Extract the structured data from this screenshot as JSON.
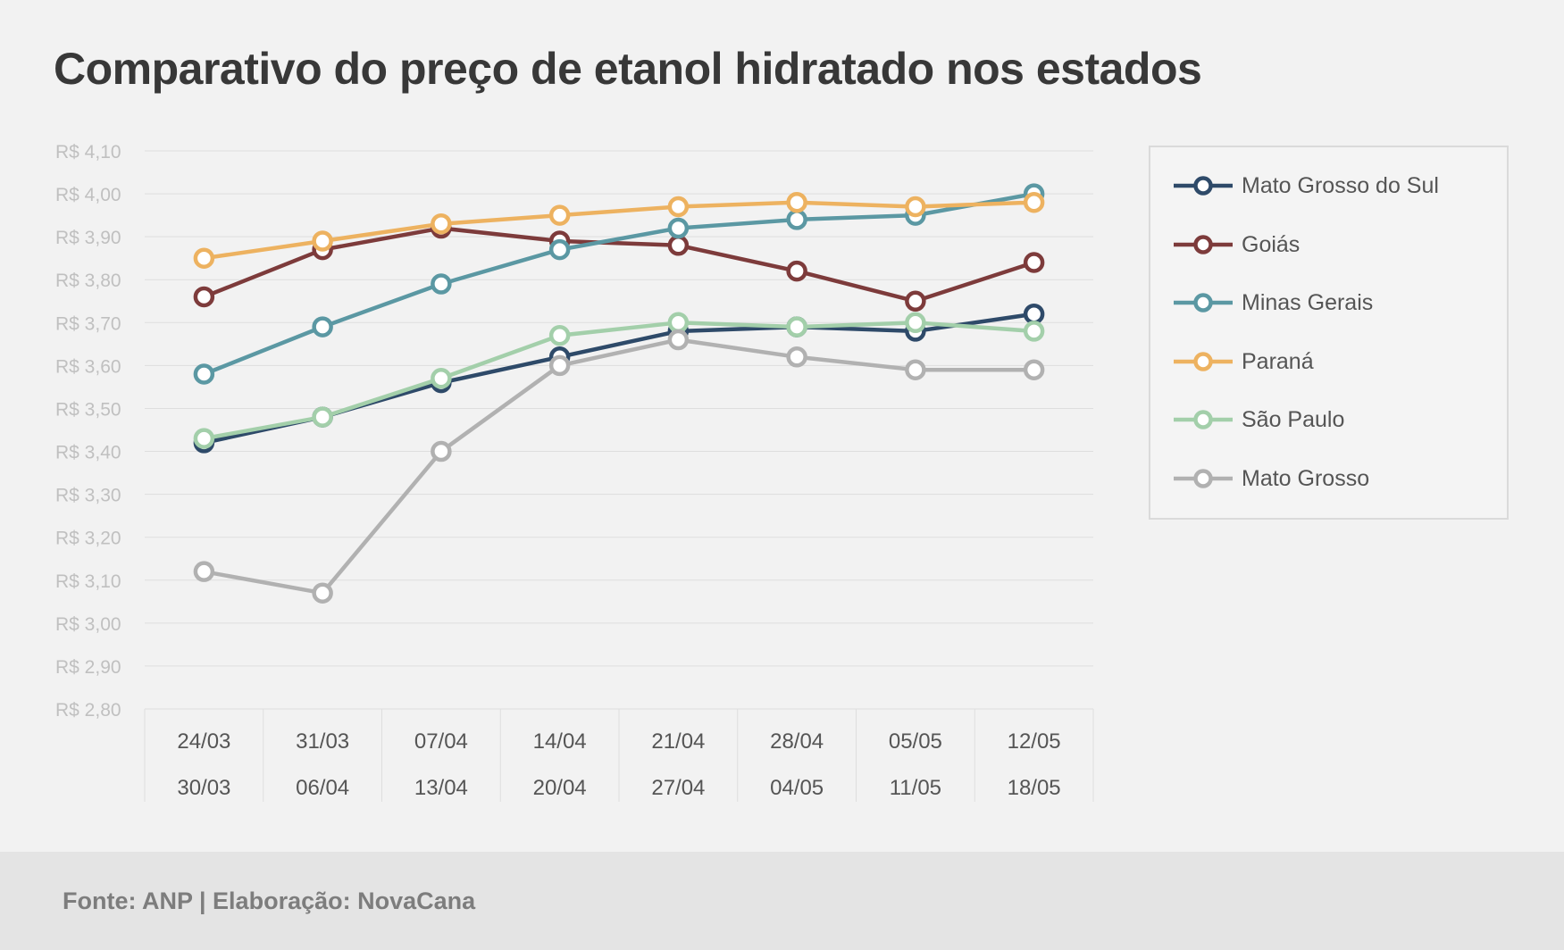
{
  "title": "Comparativo do preço de etanol hidratado nos estados",
  "source": "Fonte: ANP | Elaboração: NovaCana",
  "chart_data": {
    "type": "line",
    "title": "Comparativo do preço de etanol hidratado nos estados",
    "categories": [
      [
        "24/03",
        "30/03"
      ],
      [
        "31/03",
        "06/04"
      ],
      [
        "07/04",
        "13/04"
      ],
      [
        "14/04",
        "20/04"
      ],
      [
        "21/04",
        "27/04"
      ],
      [
        "28/04",
        "04/05"
      ],
      [
        "05/05",
        "11/05"
      ],
      [
        "12/05",
        "18/05"
      ]
    ],
    "yticks": [
      "R$ 2,80",
      "R$ 2,90",
      "R$ 3,00",
      "R$ 3,10",
      "R$ 3,20",
      "R$ 3,30",
      "R$ 3,40",
      "R$ 3,50",
      "R$ 3,60",
      "R$ 3,70",
      "R$ 3,80",
      "R$ 3,90",
      "R$ 4,00",
      "R$ 4,10"
    ],
    "ylim": [
      2.8,
      4.1
    ],
    "grid": true,
    "legend_position": "right",
    "series": [
      {
        "name": "Mato Grosso do Sul",
        "color": "#2e4a69",
        "values": [
          3.42,
          3.48,
          3.56,
          3.62,
          3.68,
          3.69,
          3.68,
          3.72
        ]
      },
      {
        "name": "Goiás",
        "color": "#7d3b3b",
        "values": [
          3.76,
          3.87,
          3.92,
          3.89,
          3.88,
          3.82,
          3.75,
          3.84
        ]
      },
      {
        "name": "Minas Gerais",
        "color": "#5b98a3",
        "values": [
          3.58,
          3.69,
          3.79,
          3.87,
          3.92,
          3.94,
          3.95,
          4.0
        ]
      },
      {
        "name": "Paraná",
        "color": "#edb260",
        "values": [
          3.85,
          3.89,
          3.93,
          3.95,
          3.97,
          3.98,
          3.97,
          3.98
        ]
      },
      {
        "name": "São Paulo",
        "color": "#a3cfaa",
        "values": [
          3.43,
          3.48,
          3.57,
          3.67,
          3.7,
          3.69,
          3.7,
          3.68
        ]
      },
      {
        "name": "Mato Grosso",
        "color": "#b1b1b1",
        "values": [
          3.12,
          3.07,
          3.4,
          3.6,
          3.66,
          3.62,
          3.59,
          3.59
        ]
      }
    ]
  }
}
